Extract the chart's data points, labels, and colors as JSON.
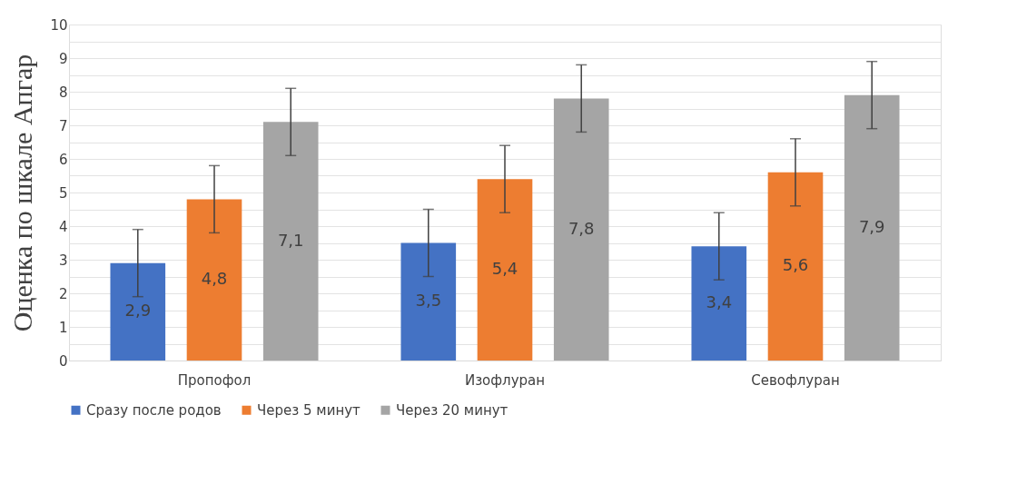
{
  "chart_data": {
    "type": "bar",
    "ylabel": "Оценка по шкале Апгар",
    "categories": [
      "Пропофол",
      "Изофлуран",
      "Севофлуран"
    ],
    "series": [
      {
        "name": "Сразу после родов",
        "color": "#4472c4",
        "values": [
          2.9,
          3.5,
          3.4
        ],
        "errors": [
          1,
          1,
          1
        ],
        "value_labels": [
          "2,9",
          "3,5",
          "3,4"
        ]
      },
      {
        "name": "Через 5 минут",
        "color": "#ed7d31",
        "values": [
          4.8,
          5.4,
          5.6
        ],
        "errors": [
          1,
          1,
          1
        ],
        "value_labels": [
          "4,8",
          "5,4",
          "5,6"
        ]
      },
      {
        "name": "Через 20 минут",
        "color": "#a5a5a5",
        "values": [
          7.1,
          7.8,
          7.9
        ],
        "errors": [
          1,
          1,
          1
        ],
        "value_labels": [
          "7,1",
          "7,8",
          "7,9"
        ]
      }
    ],
    "ylim": [
      0,
      10
    ],
    "yticks": [
      0,
      {
        "value": 0.5,
        "label": null
      },
      1,
      {
        "value": 1.5,
        "label": null
      },
      2,
      {
        "value": 2.5,
        "label": null
      },
      3,
      {
        "value": 3.5,
        "label": null
      },
      4,
      {
        "value": 4.5,
        "label": null
      },
      5,
      {
        "value": 5.5,
        "label": null
      },
      6,
      {
        "value": 6.5,
        "label": null
      },
      7,
      {
        "value": 7.5,
        "label": null
      },
      8,
      {
        "value": 8.5,
        "label": null
      },
      9,
      {
        "value": 9.5,
        "label": null
      },
      10
    ],
    "grid": "y",
    "legend": "bottom"
  }
}
